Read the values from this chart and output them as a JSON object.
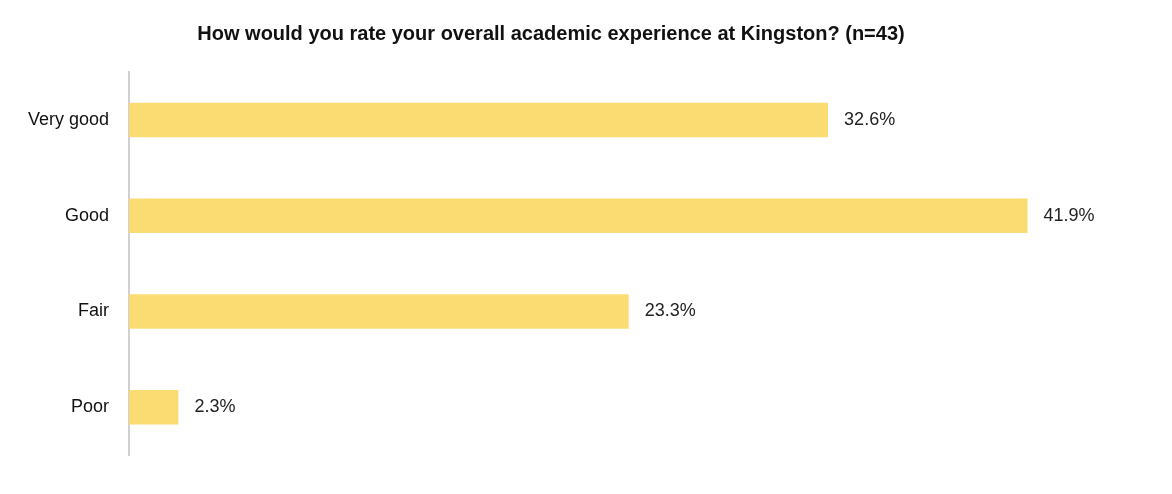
{
  "chart_data": {
    "type": "bar",
    "orientation": "horizontal",
    "title": "How would you rate your overall academic experience at Kingston? (n=43)",
    "categories": [
      "Very good",
      "Good",
      "Fair",
      "Poor"
    ],
    "values": [
      32.6,
      41.9,
      23.3,
      2.3
    ],
    "value_labels": [
      "32.6%",
      "41.9%",
      "23.3%",
      "2.3%"
    ],
    "color": "#fadc73",
    "grid": false,
    "legend": false
  }
}
